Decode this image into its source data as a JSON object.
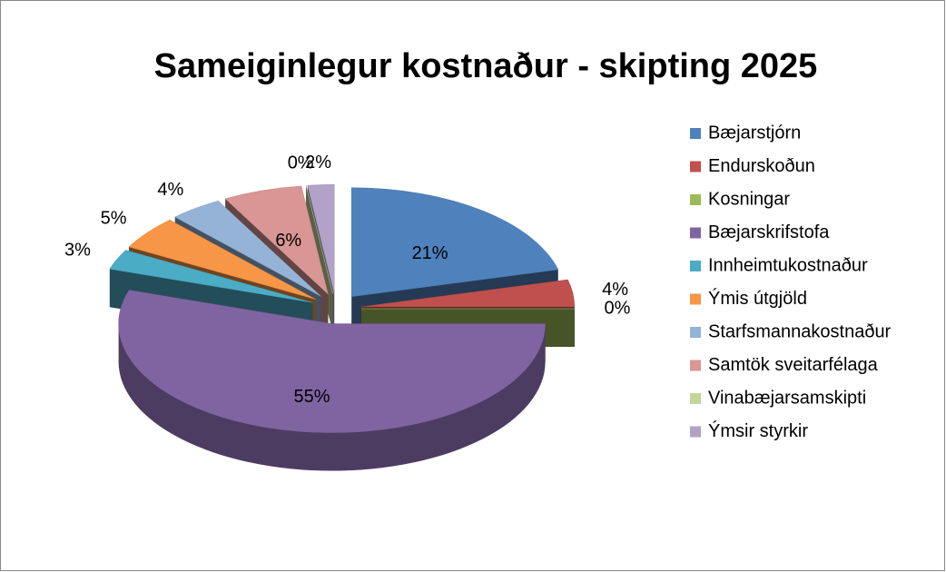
{
  "chart_data": {
    "type": "pie",
    "title": "Sameiginlegur kostnaður - skipting 2025",
    "categories": [
      "Bæjarstjórn",
      "Endurskoðun",
      "Kosningar",
      "Bæjarskrifstofa",
      "Innheimtukostnaður",
      "Ýmis útgjöld",
      "Starfsmannakostnaður",
      "Samtök sveitarfélaga",
      "Vinabæjarsamskipti",
      "Ýmsir styrkir"
    ],
    "values": [
      21,
      4,
      0,
      55,
      3,
      5,
      4,
      6,
      0,
      2
    ],
    "value_labels": [
      "21%",
      "4%",
      "0%",
      "55%",
      "3%",
      "5%",
      "4%",
      "6%",
      "0%",
      "2%"
    ],
    "colors": [
      "#4f81bd",
      "#c0504d",
      "#9bbb59",
      "#8064a2",
      "#4bacc6",
      "#f79646",
      "#95b3d7",
      "#d99694",
      "#c3d69b",
      "#b2a2c7"
    ],
    "legend": "right"
  }
}
